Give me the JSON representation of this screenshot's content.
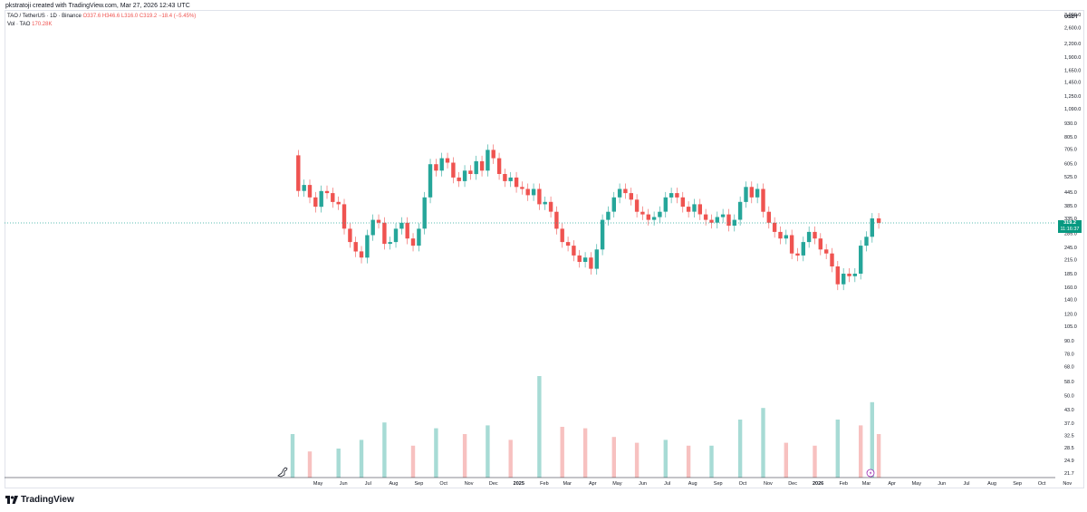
{
  "attribution": "pkstratoji created with TradingView.com, Mar 27, 2026 12:43 UTC",
  "brand": {
    "name": "TradingView",
    "logo_icon": "tradingview-logo-icon"
  },
  "legend": {
    "symbol": "TAO / TetherUS · 1D · Binance",
    "open": "O337.6",
    "high": "H346.6",
    "low": "L316.0",
    "close": "C319.2",
    "change": "−18.4 (−5.45%)",
    "volume_label": "Vol · TAO",
    "volume_value": "170.28K"
  },
  "price_axis": {
    "currency": "USDT",
    "ticks": [
      "3,000.0",
      "2,600.0",
      "2,200.0",
      "1,900.0",
      "1,650.0",
      "1,450.0",
      "1,250.0",
      "1,090.0",
      "930.0",
      "805.0",
      "705.0",
      "605.0",
      "525.0",
      "445.0",
      "385.0",
      "335.0",
      "285.0",
      "245.0",
      "215.0",
      "185.0",
      "160.0",
      "140.0",
      "120.0",
      "105.0",
      "90.0",
      "78.0",
      "68.0",
      "58.0",
      "50.0",
      "43.0",
      "37.0",
      "32.5",
      "28.5",
      "24.9",
      "21.7"
    ],
    "last_price": "319.2",
    "countdown": "11:16:37"
  },
  "time_axis": {
    "labels": [
      "May",
      "Jun",
      "Jul",
      "Aug",
      "Sep",
      "Oct",
      "Nov",
      "Dec",
      "2025",
      "Feb",
      "Mar",
      "Apr",
      "May",
      "Jun",
      "Jul",
      "Aug",
      "Sep",
      "Oct",
      "Nov",
      "Dec",
      "2026",
      "Feb",
      "Mar",
      "Apr",
      "May",
      "Jun",
      "Jul",
      "Aug",
      "Sep",
      "Oct",
      "Nov"
    ]
  },
  "colors": {
    "up": "#26a69a",
    "down": "#ef5350",
    "up_vol": "#a7dbd5",
    "down_vol": "#f7c1c0",
    "last_line": "#26a69a",
    "badge": "#089981",
    "event_icon": "#9c27b0"
  },
  "icons": {
    "cursor": "dino-cursor-icon",
    "event": "lightning-event-icon"
  },
  "chart_data": {
    "type": "candlestick",
    "title": "TAO / TetherUS · 1D · Binance",
    "xlabel": "",
    "ylabel": "USDT",
    "y_scale": "log",
    "ylim": [
      21.7,
      3000
    ],
    "x_range": [
      "2024-04-11",
      "2026-03-27"
    ],
    "grid": false,
    "legend_position": "top-left",
    "series": [
      {
        "name": "TAO / TetherUS",
        "kind": "price",
        "points": [
          {
            "x": "2024-04-11",
            "y": 660
          },
          {
            "x": "2024-04-18",
            "y": 450
          },
          {
            "x": "2024-04-25",
            "y": 480
          },
          {
            "x": "2024-05-02",
            "y": 420
          },
          {
            "x": "2024-05-09",
            "y": 380
          },
          {
            "x": "2024-05-16",
            "y": 450
          },
          {
            "x": "2024-05-23",
            "y": 440
          },
          {
            "x": "2024-05-30",
            "y": 400
          },
          {
            "x": "2024-06-06",
            "y": 390
          },
          {
            "x": "2024-06-13",
            "y": 300
          },
          {
            "x": "2024-06-20",
            "y": 260
          },
          {
            "x": "2024-06-27",
            "y": 235
          },
          {
            "x": "2024-07-04",
            "y": 220
          },
          {
            "x": "2024-07-11",
            "y": 280
          },
          {
            "x": "2024-07-18",
            "y": 330
          },
          {
            "x": "2024-07-25",
            "y": 320
          },
          {
            "x": "2024-08-01",
            "y": 255
          },
          {
            "x": "2024-08-08",
            "y": 260
          },
          {
            "x": "2024-08-15",
            "y": 300
          },
          {
            "x": "2024-08-22",
            "y": 320
          },
          {
            "x": "2024-08-29",
            "y": 270
          },
          {
            "x": "2024-09-05",
            "y": 250
          },
          {
            "x": "2024-09-12",
            "y": 300
          },
          {
            "x": "2024-09-19",
            "y": 420
          },
          {
            "x": "2024-09-26",
            "y": 600
          },
          {
            "x": "2024-10-03",
            "y": 560
          },
          {
            "x": "2024-10-10",
            "y": 640
          },
          {
            "x": "2024-10-17",
            "y": 610
          },
          {
            "x": "2024-10-24",
            "y": 520
          },
          {
            "x": "2024-10-31",
            "y": 500
          },
          {
            "x": "2024-11-07",
            "y": 560
          },
          {
            "x": "2024-11-14",
            "y": 540
          },
          {
            "x": "2024-11-21",
            "y": 620
          },
          {
            "x": "2024-11-28",
            "y": 560
          },
          {
            "x": "2024-12-05",
            "y": 700
          },
          {
            "x": "2024-12-12",
            "y": 640
          },
          {
            "x": "2024-12-19",
            "y": 540
          },
          {
            "x": "2024-12-26",
            "y": 500
          },
          {
            "x": "2025-01-02",
            "y": 520
          },
          {
            "x": "2025-01-09",
            "y": 470
          },
          {
            "x": "2025-01-16",
            "y": 460
          },
          {
            "x": "2025-01-23",
            "y": 430
          },
          {
            "x": "2025-01-30",
            "y": 460
          },
          {
            "x": "2025-02-06",
            "y": 390
          },
          {
            "x": "2025-02-13",
            "y": 400
          },
          {
            "x": "2025-02-20",
            "y": 360
          },
          {
            "x": "2025-02-27",
            "y": 300
          },
          {
            "x": "2025-03-06",
            "y": 260
          },
          {
            "x": "2025-03-13",
            "y": 250
          },
          {
            "x": "2025-03-20",
            "y": 225
          },
          {
            "x": "2025-03-27",
            "y": 210
          },
          {
            "x": "2025-04-03",
            "y": 220
          },
          {
            "x": "2025-04-10",
            "y": 195
          },
          {
            "x": "2025-04-17",
            "y": 240
          },
          {
            "x": "2025-04-24",
            "y": 330
          },
          {
            "x": "2025-05-01",
            "y": 360
          },
          {
            "x": "2025-05-08",
            "y": 420
          },
          {
            "x": "2025-05-15",
            "y": 460
          },
          {
            "x": "2025-05-22",
            "y": 440
          },
          {
            "x": "2025-05-29",
            "y": 410
          },
          {
            "x": "2025-06-05",
            "y": 360
          },
          {
            "x": "2025-06-12",
            "y": 350
          },
          {
            "x": "2025-06-19",
            "y": 330
          },
          {
            "x": "2025-06-26",
            "y": 340
          },
          {
            "x": "2025-07-03",
            "y": 360
          },
          {
            "x": "2025-07-10",
            "y": 420
          },
          {
            "x": "2025-07-17",
            "y": 440
          },
          {
            "x": "2025-07-24",
            "y": 420
          },
          {
            "x": "2025-07-31",
            "y": 380
          },
          {
            "x": "2025-08-07",
            "y": 360
          },
          {
            "x": "2025-08-14",
            "y": 390
          },
          {
            "x": "2025-08-21",
            "y": 350
          },
          {
            "x": "2025-08-28",
            "y": 330
          },
          {
            "x": "2025-09-04",
            "y": 320
          },
          {
            "x": "2025-09-11",
            "y": 340
          },
          {
            "x": "2025-09-18",
            "y": 350
          },
          {
            "x": "2025-09-25",
            "y": 310
          },
          {
            "x": "2025-10-02",
            "y": 330
          },
          {
            "x": "2025-10-09",
            "y": 400
          },
          {
            "x": "2025-10-16",
            "y": 470
          },
          {
            "x": "2025-10-23",
            "y": 420
          },
          {
            "x": "2025-10-30",
            "y": 460
          },
          {
            "x": "2025-11-06",
            "y": 360
          },
          {
            "x": "2025-11-13",
            "y": 320
          },
          {
            "x": "2025-11-20",
            "y": 290
          },
          {
            "x": "2025-11-27",
            "y": 270
          },
          {
            "x": "2025-12-04",
            "y": 280
          },
          {
            "x": "2025-12-11",
            "y": 230
          },
          {
            "x": "2025-12-18",
            "y": 225
          },
          {
            "x": "2025-12-25",
            "y": 260
          },
          {
            "x": "2026-01-01",
            "y": 290
          },
          {
            "x": "2026-01-08",
            "y": 270
          },
          {
            "x": "2026-01-15",
            "y": 240
          },
          {
            "x": "2026-01-22",
            "y": 230
          },
          {
            "x": "2026-01-29",
            "y": 200
          },
          {
            "x": "2026-02-05",
            "y": 165
          },
          {
            "x": "2026-02-12",
            "y": 185
          },
          {
            "x": "2026-02-19",
            "y": 180
          },
          {
            "x": "2026-02-26",
            "y": 185
          },
          {
            "x": "2026-03-05",
            "y": 250
          },
          {
            "x": "2026-03-12",
            "y": 275
          },
          {
            "x": "2026-03-19",
            "y": 335
          },
          {
            "x": "2026-03-27",
            "y": 319.2
          }
        ]
      },
      {
        "name": "Vol · TAO",
        "kind": "volume",
        "note": "weekly representative levels",
        "points": [
          {
            "x": "2024-04-11",
            "y": 30
          },
          {
            "x": "2024-05-02",
            "y": 18
          },
          {
            "x": "2024-06-06",
            "y": 20
          },
          {
            "x": "2024-07-04",
            "y": 26
          },
          {
            "x": "2024-08-01",
            "y": 38
          },
          {
            "x": "2024-09-05",
            "y": 22
          },
          {
            "x": "2024-10-03",
            "y": 34
          },
          {
            "x": "2024-11-07",
            "y": 30
          },
          {
            "x": "2024-12-05",
            "y": 36
          },
          {
            "x": "2025-01-02",
            "y": 26
          },
          {
            "x": "2025-02-06",
            "y": 70
          },
          {
            "x": "2025-03-06",
            "y": 35
          },
          {
            "x": "2025-04-03",
            "y": 34
          },
          {
            "x": "2025-05-08",
            "y": 28
          },
          {
            "x": "2025-06-05",
            "y": 24
          },
          {
            "x": "2025-07-10",
            "y": 26
          },
          {
            "x": "2025-08-07",
            "y": 22
          },
          {
            "x": "2025-09-04",
            "y": 22
          },
          {
            "x": "2025-10-09",
            "y": 40
          },
          {
            "x": "2025-11-06",
            "y": 48
          },
          {
            "x": "2025-12-04",
            "y": 24
          },
          {
            "x": "2026-01-08",
            "y": 22
          },
          {
            "x": "2026-02-05",
            "y": 40
          },
          {
            "x": "2026-03-05",
            "y": 36
          },
          {
            "x": "2026-03-19",
            "y": 52
          },
          {
            "x": "2026-03-27",
            "y": 30
          }
        ]
      }
    ]
  }
}
